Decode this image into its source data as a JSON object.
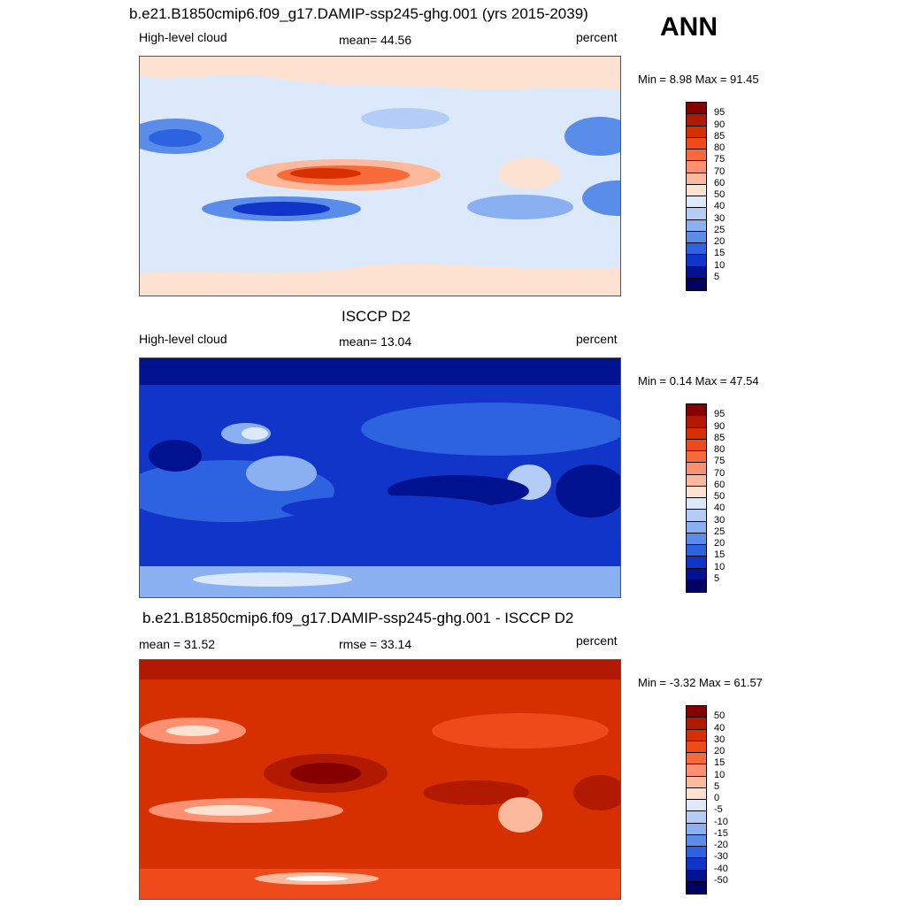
{
  "ann_label": "ANN",
  "panels": [
    {
      "title": "b.e21.B1850cmip6.f09_g17.DAMIP-ssp245-ghg.001 (yrs 2015-2039)",
      "left_label": "High-level cloud",
      "center_label": "mean=  44.56",
      "right_label": "percent",
      "minmax": "Min =   8.98 Max =  91.45",
      "colorbar_labels": [
        "95",
        "90",
        "85",
        "80",
        "75",
        "70",
        "60",
        "50",
        "40",
        "30",
        "25",
        "20",
        "15",
        "10",
        "5"
      ]
    },
    {
      "title": "ISCCP D2",
      "left_label": "High-level cloud",
      "center_label": "mean=  13.04",
      "right_label": "percent",
      "minmax": "Min =   0.14 Max =  47.54",
      "colorbar_labels": [
        "95",
        "90",
        "85",
        "80",
        "75",
        "70",
        "60",
        "50",
        "40",
        "30",
        "25",
        "20",
        "15",
        "10",
        "5"
      ]
    },
    {
      "title": "b.e21.B1850cmip6.f09_g17.DAMIP-ssp245-ghg.001 - ISCCP D2",
      "left_label": "mean =  31.52",
      "center_label": "rmse =  33.14",
      "right_label": "percent",
      "minmax": "Min =  -3.32 Max =  61.57",
      "colorbar_labels": [
        "50",
        "40",
        "30",
        "20",
        "15",
        "10",
        "5",
        "0",
        "-5",
        "-10",
        "-15",
        "-20",
        "-30",
        "-40",
        "-50"
      ]
    }
  ],
  "palette": [
    "#870000",
    "#b11a00",
    "#d63000",
    "#ef4a1a",
    "#f86a3a",
    "#fc9070",
    "#fdb99b",
    "#fde2d2",
    "#dce9fb",
    "#b4cdf7",
    "#8ab0f2",
    "#5a8ce9",
    "#2d62e0",
    "#1235c9",
    "#00128f",
    "#000064"
  ]
}
